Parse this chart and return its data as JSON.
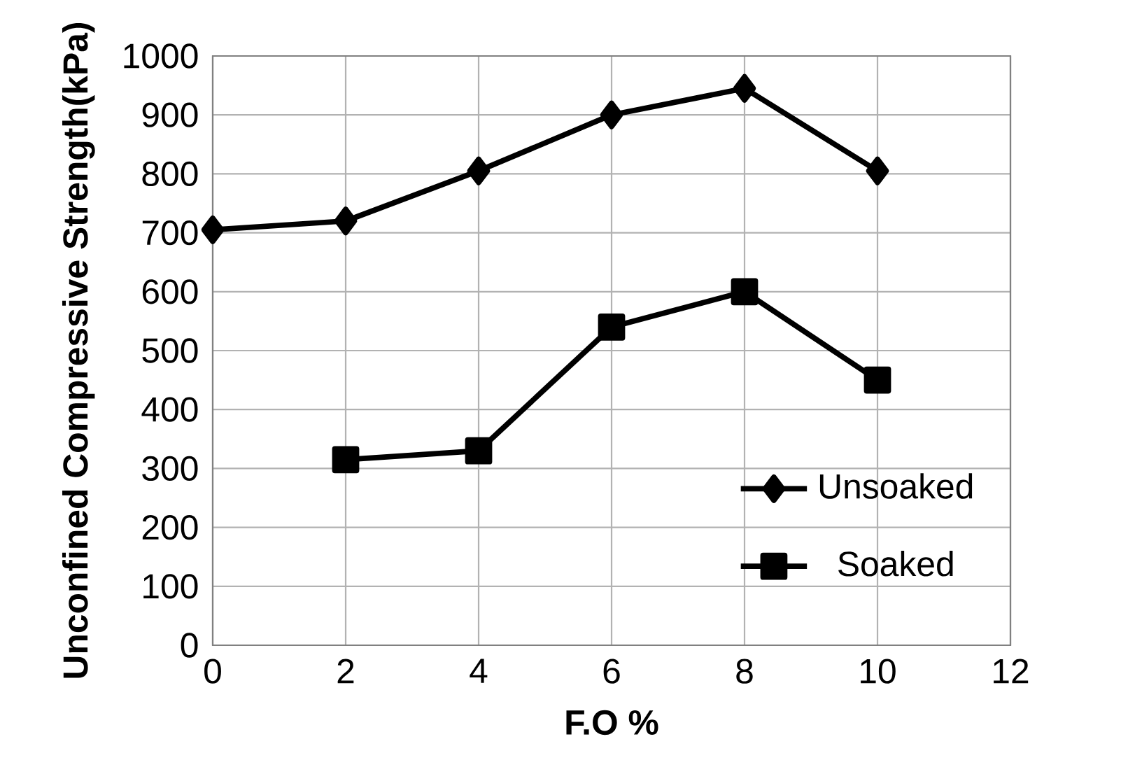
{
  "chart_data": {
    "type": "line",
    "xlabel": "F.O %",
    "ylabel": "Unconfined Compressive Strength(kPa)",
    "x": [
      0,
      2,
      4,
      6,
      8,
      10
    ],
    "series": [
      {
        "name": "Unsoaked",
        "color": "#000000",
        "marker": "diamond",
        "values": [
          705,
          720,
          805,
          900,
          945,
          805
        ]
      },
      {
        "name": "Soaked",
        "color": "#000000",
        "marker": "square",
        "values": [
          null,
          315,
          330,
          540,
          600,
          450
        ]
      }
    ],
    "xlim": [
      0,
      12
    ],
    "xticks": [
      0,
      2,
      4,
      6,
      8,
      10,
      12
    ],
    "ylim": [
      0,
      1000
    ],
    "yticks": [
      0,
      100,
      200,
      300,
      400,
      500,
      600,
      700,
      800,
      900,
      1000
    ],
    "grid": true,
    "legend": "bottom right",
    "line_style": "solid"
  }
}
